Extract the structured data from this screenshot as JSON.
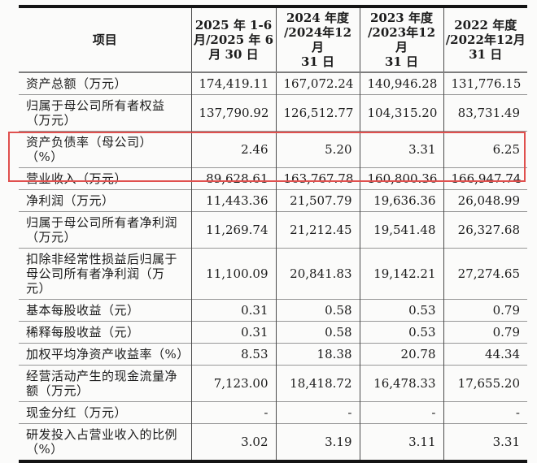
{
  "table": {
    "header": {
      "item_label": "项目",
      "periods": [
        "2025 年 1-6\n月/2025 年 6\n月 30 日",
        "2024 年度\n/2024年12月\n31 日",
        "2023 年度\n/2023年12月\n31 日",
        "2022 年度\n/2022年12月\n31 日"
      ]
    },
    "rows": [
      {
        "label": "资产总额（万元）",
        "values": [
          "174,419.11",
          "167,072.24",
          "140,946.28",
          "131,776.15"
        ],
        "highlighted": false
      },
      {
        "label": "归属于母公司所有者权益（万元）",
        "values": [
          "137,790.92",
          "126,512.77",
          "104,315.20",
          "83,731.49"
        ],
        "highlighted": false
      },
      {
        "label": "资产负债率（母公司） （%）",
        "values": [
          "2.46",
          "5.20",
          "3.31",
          "6.25"
        ],
        "highlighted": false
      },
      {
        "label": "营业收入（万元）",
        "values": [
          "89,628.61",
          "163,767.78",
          "160,800.36",
          "166,947.74"
        ],
        "highlighted": true
      },
      {
        "label": "净利润（万元）",
        "values": [
          "11,443.36",
          "21,507.79",
          "19,636.36",
          "26,048.99"
        ],
        "highlighted": true
      },
      {
        "label": "归属于母公司所有者净利润（万元）",
        "values": [
          "11,269.74",
          "21,212.45",
          "19,541.48",
          "26,327.68"
        ],
        "highlighted": false
      },
      {
        "label": "扣除非经常性损益后归属于母公司所有者净利润（万元）",
        "values": [
          "11,100.09",
          "20,841.83",
          "19,142.21",
          "27,274.65"
        ],
        "highlighted": false
      },
      {
        "label": "基本每股收益（元）",
        "values": [
          "0.31",
          "0.58",
          "0.53",
          "0.79"
        ],
        "highlighted": false
      },
      {
        "label": "稀释每股收益（元）",
        "values": [
          "0.31",
          "0.58",
          "0.53",
          "0.79"
        ],
        "highlighted": false
      },
      {
        "label": "加权平均净资产收益率（%）",
        "values": [
          "8.53",
          "18.38",
          "20.78",
          "44.34"
        ],
        "highlighted": false
      },
      {
        "label": "经营活动产生的现金流量净额（万元）",
        "values": [
          "7,123.00",
          "18,418.72",
          "16,478.33",
          "17,655.20"
        ],
        "highlighted": false
      },
      {
        "label": "现金分红（万元）",
        "values": [
          "-",
          "-",
          "-",
          "-"
        ],
        "highlighted": false
      },
      {
        "label": "研发投入占营业收入的比例（%）",
        "values": [
          "3.02",
          "3.19",
          "3.11",
          "3.31"
        ],
        "highlighted": false
      }
    ]
  },
  "colors": {
    "highlight_border": "#e0504e",
    "thick_rule": "#141414",
    "row_rule": "#979797",
    "column_rule": "#4c4c4c"
  }
}
